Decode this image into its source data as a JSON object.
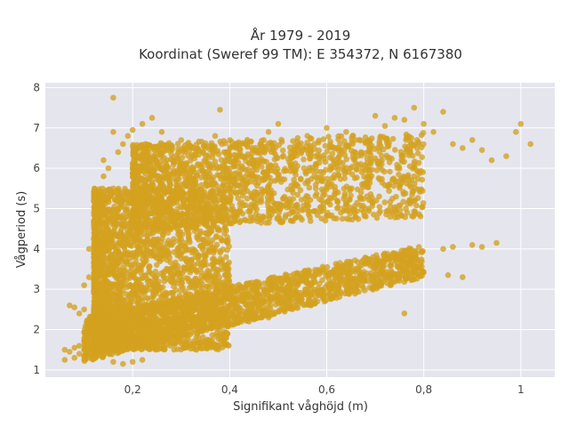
{
  "chart_data": {
    "type": "scatter",
    "title_line1": "År 1979 - 2019",
    "title_line2": "Koordinat (Sweref 99 TM): E 354372, N 6167380",
    "xlabel": "Signifikant våghöjd (m)",
    "ylabel": "Vågperiod (s)",
    "xlim": [
      0.02,
      1.07
    ],
    "ylim": [
      0.82,
      8.12
    ],
    "x_ticks": [
      0.2,
      0.4,
      0.6,
      0.8,
      1.0
    ],
    "x_tick_labels": [
      "0,2",
      "0,4",
      "0,6",
      "0,8",
      "1"
    ],
    "y_ticks": [
      1,
      2,
      3,
      4,
      5,
      6,
      7,
      8
    ],
    "y_tick_labels": [
      "1",
      "2",
      "3",
      "4",
      "5",
      "6",
      "7",
      "8"
    ],
    "grid": true,
    "marker_color": "#D4A21F",
    "background_color": "#E5E5EE",
    "clusters": [
      {
        "description": "lower wind-sea band",
        "x_range": [
          0.1,
          0.8
        ],
        "y_at_xmin": [
          1.2,
          2.3
        ],
        "y_at_xmax": [
          3.3,
          4.1
        ]
      },
      {
        "description": "dense core",
        "x_range": [
          0.12,
          0.4
        ],
        "y_range": [
          1.5,
          5.5
        ]
      },
      {
        "description": "upper swell band",
        "x_range": [
          0.2,
          0.8
        ],
        "y_range": [
          4.5,
          6.6
        ]
      }
    ],
    "points": [
      [
        0.06,
        1.25
      ],
      [
        0.06,
        1.5
      ],
      [
        0.07,
        1.45
      ],
      [
        0.08,
        1.3
      ],
      [
        0.08,
        1.55
      ],
      [
        0.09,
        1.4
      ],
      [
        0.09,
        1.6
      ],
      [
        0.1,
        1.5
      ],
      [
        0.1,
        1.35
      ],
      [
        0.11,
        1.65
      ],
      [
        0.07,
        2.6
      ],
      [
        0.08,
        2.55
      ],
      [
        0.09,
        2.4
      ],
      [
        0.1,
        2.5
      ],
      [
        0.1,
        3.1
      ],
      [
        0.11,
        3.3
      ],
      [
        0.11,
        4.0
      ],
      [
        0.12,
        3.8
      ],
      [
        0.12,
        4.6
      ],
      [
        0.12,
        5.3
      ],
      [
        0.13,
        5.4
      ],
      [
        0.14,
        5.0
      ],
      [
        0.14,
        5.8
      ],
      [
        0.14,
        6.2
      ],
      [
        0.15,
        6.0
      ],
      [
        0.16,
        6.9
      ],
      [
        0.17,
        6.4
      ],
      [
        0.18,
        6.6
      ],
      [
        0.19,
        6.8
      ],
      [
        0.16,
        7.75
      ],
      [
        0.2,
        6.95
      ],
      [
        0.22,
        7.1
      ],
      [
        0.24,
        7.25
      ],
      [
        0.26,
        6.9
      ],
      [
        0.3,
        6.7
      ],
      [
        0.32,
        6.55
      ],
      [
        0.35,
        6.5
      ],
      [
        0.37,
        6.8
      ],
      [
        0.38,
        7.45
      ],
      [
        0.42,
        6.6
      ],
      [
        0.46,
        6.45
      ],
      [
        0.48,
        6.9
      ],
      [
        0.5,
        7.1
      ],
      [
        0.54,
        6.75
      ],
      [
        0.56,
        6.8
      ],
      [
        0.6,
        7.0
      ],
      [
        0.62,
        6.5
      ],
      [
        0.64,
        6.9
      ],
      [
        0.66,
        6.7
      ],
      [
        0.68,
        6.65
      ],
      [
        0.7,
        7.3
      ],
      [
        0.72,
        7.05
      ],
      [
        0.74,
        7.25
      ],
      [
        0.76,
        7.2
      ],
      [
        0.78,
        7.5
      ],
      [
        0.8,
        7.1
      ],
      [
        0.82,
        6.9
      ],
      [
        0.84,
        7.4
      ],
      [
        0.86,
        6.6
      ],
      [
        0.88,
        6.5
      ],
      [
        0.9,
        6.7
      ],
      [
        0.92,
        6.45
      ],
      [
        0.94,
        6.2
      ],
      [
        0.97,
        6.3
      ],
      [
        0.99,
        6.9
      ],
      [
        1.0,
        7.1
      ],
      [
        1.02,
        6.6
      ],
      [
        0.9,
        4.1
      ],
      [
        0.92,
        4.05
      ],
      [
        0.95,
        4.15
      ],
      [
        0.84,
        4.0
      ],
      [
        0.86,
        4.05
      ],
      [
        0.88,
        3.3
      ],
      [
        0.85,
        3.35
      ],
      [
        0.76,
        2.4
      ],
      [
        0.46,
        2.55
      ],
      [
        0.48,
        2.3
      ],
      [
        0.44,
        2.2
      ],
      [
        0.18,
        1.15
      ],
      [
        0.2,
        1.2
      ],
      [
        0.22,
        1.25
      ],
      [
        0.16,
        1.2
      ]
    ]
  }
}
